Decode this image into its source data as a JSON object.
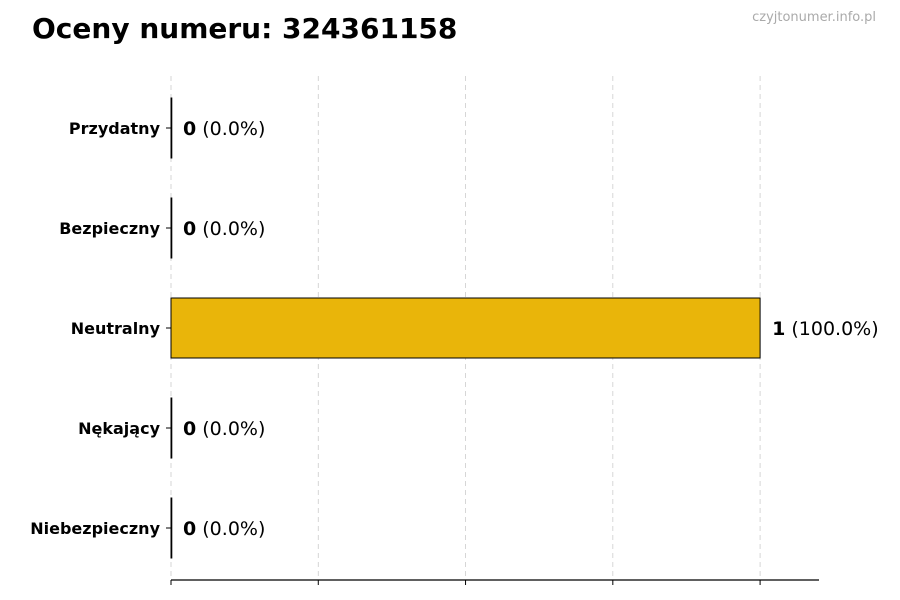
{
  "chart_data": {
    "type": "bar",
    "orientation": "horizontal",
    "title": "Oceny numeru: 324361158",
    "categories": [
      "Przydatny",
      "Bezpieczny",
      "Neutralny",
      "Nękający",
      "Niebezpieczny"
    ],
    "values": [
      0,
      0,
      1,
      0,
      0
    ],
    "percent_labels": [
      "(0.0%)",
      "(0.0%)",
      "(100.0%)",
      "(0.0%)",
      "(0.0%)"
    ],
    "xlim": [
      0,
      1.1
    ],
    "xticks": [
      0,
      0.25,
      0.5,
      0.75,
      1.0
    ],
    "xtick_labels_shown": false,
    "grid": "vertical dashed",
    "bar_color": "#E9B50A",
    "bar_edge_color": "#000000"
  },
  "watermark": "czyjtonumer.info.pl"
}
